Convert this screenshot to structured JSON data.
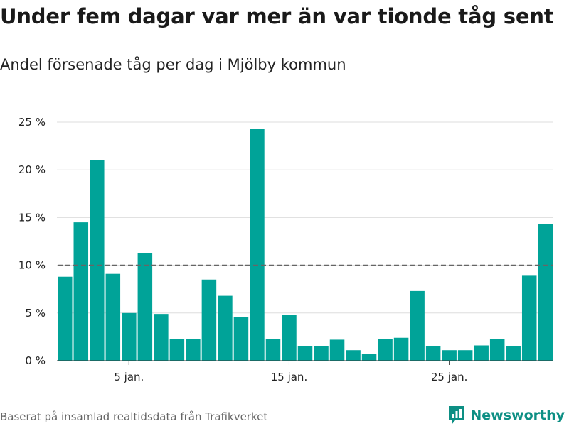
{
  "chart_data": {
    "type": "bar",
    "title": "Under fem dagar var mer än var tionde tåg sent",
    "subtitle": "Andel försenade tåg per dag i Mjölby kommun",
    "x": [
      1,
      2,
      3,
      4,
      5,
      6,
      7,
      8,
      9,
      10,
      11,
      12,
      13,
      14,
      15,
      16,
      17,
      18,
      19,
      20,
      21,
      22,
      23,
      24,
      25,
      26,
      27,
      28,
      29,
      30,
      31
    ],
    "values": [
      8.8,
      14.5,
      21.0,
      9.1,
      5.0,
      11.3,
      4.9,
      2.3,
      2.3,
      8.5,
      6.8,
      4.6,
      24.3,
      2.3,
      4.8,
      1.5,
      1.5,
      2.2,
      1.1,
      0.7,
      2.3,
      2.4,
      7.3,
      1.5,
      1.1,
      1.1,
      1.6,
      2.3,
      1.5,
      8.9,
      14.3
    ],
    "x_ticks": [
      {
        "x": 5,
        "label": "5 jan."
      },
      {
        "x": 15,
        "label": "15 jan."
      },
      {
        "x": 25,
        "label": "25 jan."
      }
    ],
    "y_ticks": [
      {
        "value": 0,
        "label": "0 %"
      },
      {
        "value": 5,
        "label": "5 %"
      },
      {
        "value": 10,
        "label": "10 %"
      },
      {
        "value": 15,
        "label": "15 %"
      },
      {
        "value": 20,
        "label": "20 %"
      },
      {
        "value": 25,
        "label": "25 %"
      }
    ],
    "ylim": [
      0,
      25
    ],
    "xlim": [
      0.5,
      31.5
    ],
    "reference_line": 10,
    "grid": true,
    "bar_color": "#00a398",
    "reference_line_color": "#666666"
  },
  "footer": {
    "source": "Baserat på insamlad realtidsdata från Trafikverket",
    "brand": "Newsworthy"
  },
  "colors": {
    "bar": "#00a398",
    "brand": "#0d8f84",
    "grid": "#dddddd",
    "axis": "#333333"
  },
  "icons": {
    "brand_logo": "newsworthy-logo-icon"
  }
}
